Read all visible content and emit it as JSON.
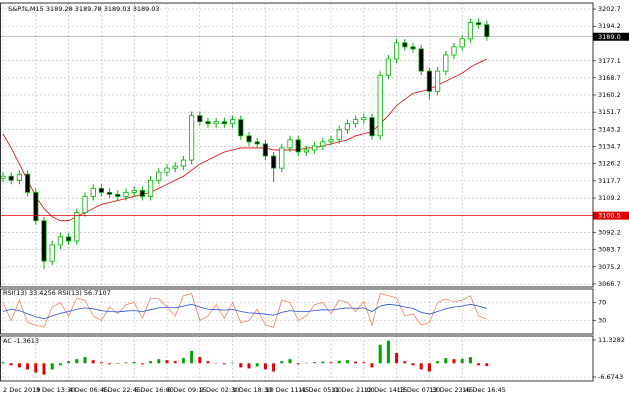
{
  "chart_data": {
    "type": "candlestick",
    "title": "S&P.fs,M15 3189.28 3189.78 3189.03 3189.03",
    "categories": [
      "2 Dec 2019",
      null,
      null,
      null,
      "3 Dec 13:30",
      null,
      null,
      null,
      "4 Dec 06:45",
      null,
      null,
      null,
      "4 Dec 22:45",
      null,
      null,
      null,
      "5 Dec 16:00",
      null,
      null,
      null,
      "6 Dec 09:15",
      null,
      null,
      null,
      "9 Dec 02:30",
      null,
      null,
      null,
      "9 Dec 18:30",
      null,
      null,
      null,
      "10 Dec 11:45",
      null,
      null,
      null,
      "11 Dec 05:00",
      null,
      null,
      null,
      "11 Dec 21:00",
      null,
      null,
      null,
      "12 Dec 14:15",
      null,
      null,
      null,
      "13 Dec 07:30",
      null,
      null,
      null,
      "13 Dec 23:45",
      null,
      null,
      null,
      "16 Dec 16:45",
      null,
      null,
      null
    ],
    "open": [
      3119,
      3120,
      3118,
      3121,
      3112,
      3098,
      3078,
      3086,
      3090,
      3088,
      3102,
      3110,
      3114,
      3112,
      3111,
      3110,
      3112,
      3113,
      3110,
      3118,
      3122,
      3124,
      3125,
      3128,
      3150,
      3147,
      3146,
      3147,
      3146,
      3148,
      3140,
      3137,
      3136,
      3130,
      3124,
      3134,
      3138,
      3132,
      3133,
      3135,
      3137,
      3138,
      3143,
      3146,
      3148,
      3149,
      3140,
      3170,
      3178,
      3186,
      3184,
      3183,
      3172,
      3162,
      3172,
      3180,
      3184,
      3188,
      3196,
      3195
    ],
    "high": [
      3122,
      3122,
      3123,
      3123,
      3114,
      3100,
      3088,
      3092,
      3092,
      3104,
      3112,
      3116,
      3116,
      3114,
      3113,
      3114,
      3115,
      3115,
      3120,
      3124,
      3126,
      3127,
      3130,
      3152,
      3152,
      3149,
      3149,
      3149,
      3150,
      3150,
      3142,
      3139,
      3138,
      3132,
      3136,
      3140,
      3140,
      3135,
      3137,
      3139,
      3140,
      3145,
      3148,
      3150,
      3151,
      3151,
      3172,
      3180,
      3188,
      3188,
      3186,
      3185,
      3174,
      3174,
      3182,
      3186,
      3190,
      3198,
      3198,
      3197
    ],
    "low": [
      3117,
      3116,
      3116,
      3110,
      3096,
      3074,
      3076,
      3084,
      3086,
      3086,
      3100,
      3108,
      3110,
      3109,
      3108,
      3108,
      3110,
      3108,
      3108,
      3116,
      3120,
      3122,
      3123,
      3126,
      3145,
      3144,
      3144,
      3144,
      3144,
      3138,
      3135,
      3134,
      3128,
      3117,
      3122,
      3132,
      3130,
      3130,
      3131,
      3133,
      3135,
      3136,
      3141,
      3144,
      3146,
      3138,
      3138,
      3168,
      3176,
      3182,
      3181,
      3170,
      3158,
      3160,
      3170,
      3178,
      3182,
      3186,
      3193,
      3187
    ],
    "close": [
      3120,
      3118,
      3121,
      3112,
      3098,
      3078,
      3086,
      3090,
      3088,
      3102,
      3110,
      3114,
      3112,
      3111,
      3110,
      3112,
      3113,
      3110,
      3118,
      3122,
      3124,
      3125,
      3128,
      3150,
      3147,
      3146,
      3147,
      3146,
      3148,
      3140,
      3137,
      3136,
      3130,
      3124,
      3134,
      3138,
      3132,
      3133,
      3135,
      3137,
      3138,
      3143,
      3146,
      3148,
      3149,
      3140,
      3170,
      3178,
      3186,
      3184,
      3183,
      3172,
      3162,
      3172,
      3180,
      3184,
      3188,
      3196,
      3195,
      3189
    ],
    "candle_color": "#00b400",
    "ma": {
      "color": "#e00000",
      "values": [
        3141,
        3134,
        3126,
        3118,
        3110,
        3104,
        3100,
        3098,
        3098,
        3100,
        3102,
        3104,
        3106,
        3107,
        3108,
        3109,
        3110,
        3111,
        3112,
        3114,
        3116,
        3118,
        3120,
        3123,
        3126,
        3128,
        3130,
        3132,
        3133,
        3134,
        3134,
        3134,
        3134,
        3133,
        3133,
        3133,
        3133,
        3134,
        3134,
        3135,
        3136,
        3137,
        3138,
        3140,
        3141,
        3142,
        3146,
        3150,
        3155,
        3158,
        3161,
        3162,
        3163,
        3165,
        3167,
        3169,
        3171,
        3174,
        3176,
        3178
      ]
    },
    "ylim": [
      3065.2,
      3205.7
    ],
    "yticks": [
      3202.7,
      3194.2,
      3177.1,
      3168.7,
      3160.2,
      3151.7,
      3143.2,
      3134.7,
      3126.2,
      3117.7,
      3109.2,
      3092.2,
      3083.7,
      3075.2,
      3066.7
    ],
    "bid": {
      "value": 3189,
      "label": "3189.0"
    },
    "hline": {
      "value": 3100.5,
      "color": "#e00000"
    },
    "grid": true,
    "rsi": {
      "title": "RSI(13) 33.4256 RSI(13) 56.7107",
      "ylim": [
        0,
        100
      ],
      "yticks": [
        70,
        30
      ],
      "series": [
        {
          "color": "#f08060",
          "values": [
            70,
            30,
            75,
            25,
            20,
            15,
            60,
            70,
            40,
            80,
            75,
            40,
            30,
            60,
            45,
            65,
            70,
            35,
            80,
            78,
            60,
            40,
            85,
            90,
            30,
            40,
            65,
            35,
            70,
            25,
            30,
            55,
            20,
            15,
            75,
            70,
            30,
            40,
            65,
            70,
            45,
            75,
            70,
            50,
            72,
            20,
            90,
            85,
            80,
            40,
            45,
            20,
            25,
            70,
            78,
            72,
            75,
            85,
            40,
            33.4256
          ]
        },
        {
          "color": "#2050e0",
          "values": [
            50,
            55,
            52,
            45,
            38,
            34,
            40,
            46,
            50,
            55,
            58,
            56,
            52,
            50,
            49,
            51,
            52,
            50,
            54,
            58,
            60,
            58,
            62,
            66,
            60,
            55,
            54,
            53,
            55,
            50,
            47,
            46,
            44,
            42,
            48,
            52,
            50,
            50,
            52,
            54,
            53,
            56,
            58,
            57,
            58,
            50,
            62,
            66,
            64,
            60,
            57,
            48,
            44,
            50,
            56,
            60,
            62,
            66,
            62,
            56.7107
          ]
        }
      ]
    },
    "ac": {
      "title": "AC -1.3613",
      "ylim": [
        -8.62,
        13.27
      ],
      "yticks": [
        11.3282,
        -6.6743
      ],
      "up_color": "#00a000",
      "down_color": "#e00000",
      "values": [
        0.5,
        -1,
        -2,
        -3,
        -4.5,
        -5.5,
        -3,
        -1,
        1,
        2,
        3,
        1.5,
        0.5,
        -0.5,
        -0.3,
        0.4,
        0.6,
        -0.5,
        1,
        2,
        1.5,
        1,
        2.5,
        6,
        3,
        1,
        0.2,
        -0.5,
        0.3,
        -2,
        -2.5,
        -1.5,
        -3,
        -4,
        1,
        2,
        -0.5,
        0.2,
        0.6,
        0.8,
        0.5,
        1.2,
        1.5,
        0.8,
        0.5,
        -2,
        9,
        11,
        5,
        1,
        -1,
        -3,
        -4,
        1,
        2.5,
        2,
        2.2,
        3,
        -1,
        -1.3613
      ]
    }
  }
}
